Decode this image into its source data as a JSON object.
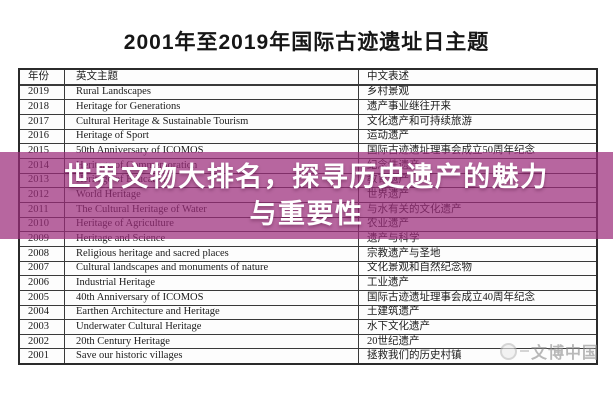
{
  "page": {
    "title": "2001年至2019年国际古迹遗址日主题"
  },
  "table": {
    "headers": [
      "年份",
      "英文主题",
      "中文表述"
    ],
    "rows": [
      {
        "year": "2019",
        "en": "Rural Landscapes",
        "zh": "乡村景观"
      },
      {
        "year": "2018",
        "en": "Heritage for Generations",
        "zh": "遗产事业继往开来"
      },
      {
        "year": "2017",
        "en": "Cultural Heritage & Sustainable Tourism",
        "zh": "文化遗产和可持续旅游"
      },
      {
        "year": "2016",
        "en": "Heritage of Sport",
        "zh": "运动遗产"
      },
      {
        "year": "2015",
        "en": "50th Anniversary of ICOMOS",
        "zh": "国际古迹遗址理事会成立50周年纪念"
      },
      {
        "year": "2014",
        "en": "Heritage of Commemoration",
        "zh": "纪念性遗产"
      },
      {
        "year": "2013",
        "en": "Heritage of Education",
        "zh": "教育遗产"
      },
      {
        "year": "2012",
        "en": "World Heritage",
        "zh": "世界遗产"
      },
      {
        "year": "2011",
        "en": "The Cultural Heritage of Water",
        "zh": "与水有关的文化遗产"
      },
      {
        "year": "2010",
        "en": "Heritage of Agriculture",
        "zh": "农业遗产"
      },
      {
        "year": "2009",
        "en": "Heritage and Science",
        "zh": "遗产与科学"
      },
      {
        "year": "2008",
        "en": "Religious heritage and sacred places",
        "zh": "宗教遗产与圣地"
      },
      {
        "year": "2007",
        "en": "Cultural landscapes and monuments of nature",
        "zh": "文化景观和自然纪念物"
      },
      {
        "year": "2006",
        "en": "Industrial Heritage",
        "zh": "工业遗产"
      },
      {
        "year": "2005",
        "en": "40th Anniversary of ICOMOS",
        "zh": "国际古迹遗址理事会成立40周年纪念"
      },
      {
        "year": "2004",
        "en": "Earthen Architecture and Heritage",
        "zh": "土建筑遗产"
      },
      {
        "year": "2003",
        "en": "Underwater Cultural Heritage",
        "zh": "水下文化遗产"
      },
      {
        "year": "2002",
        "en": "20th Century Heritage",
        "zh": "20世纪遗产"
      },
      {
        "year": "2001",
        "en": "Save our historic villages",
        "zh": "拯救我们的历史村镇"
      }
    ]
  },
  "banner": {
    "line1": "世界文物大排名，探寻历史遗产的魅力",
    "line2": "与重要性",
    "overlay_color": "#9b2b7a",
    "text_color": "#ffffff"
  },
  "watermark": {
    "text": "文博中国"
  }
}
